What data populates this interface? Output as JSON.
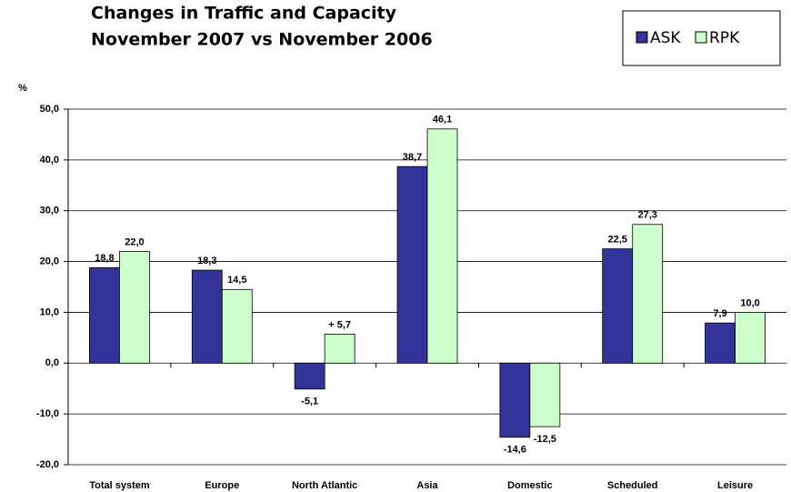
{
  "chart_data": {
    "type": "bar",
    "title": [
      "Changes in Traffic and Capacity",
      "November 2007 vs November 2006"
    ],
    "y_label": "%",
    "categories": [
      "Total system",
      "Europe",
      "North Atlantic",
      "Asia",
      "Domestic",
      "Scheduled",
      "Leisure"
    ],
    "series": [
      {
        "name": "ASK",
        "color": "#333399",
        "values": [
          18.8,
          18.3,
          -5.1,
          38.7,
          -14.6,
          22.5,
          7.9
        ],
        "value_labels": [
          "18,8",
          "18,3",
          "-5,1",
          "38,7",
          "-14,6",
          "22,5",
          "7,9"
        ]
      },
      {
        "name": "RPK",
        "color": "#ccffcc",
        "values": [
          22.0,
          14.5,
          5.7,
          46.1,
          -12.5,
          27.3,
          10.0
        ],
        "value_labels": [
          "22,0",
          "14,5",
          "+ 5,7",
          "46,1",
          "-12,5",
          "27,3",
          "10,0"
        ]
      }
    ],
    "ylim": [
      -20,
      50
    ],
    "yticks": [
      {
        "value": -20,
        "label": "-20,0"
      },
      {
        "value": -10,
        "label": "-10,0"
      },
      {
        "value": 0,
        "label": "0,0"
      },
      {
        "value": 10,
        "label": "10,0"
      },
      {
        "value": 20,
        "label": "20,0"
      },
      {
        "value": 30,
        "label": "30,0"
      },
      {
        "value": 40,
        "label": "40,0"
      },
      {
        "value": 50,
        "label": "50,0"
      }
    ],
    "grid": true,
    "legend": "top-right"
  }
}
